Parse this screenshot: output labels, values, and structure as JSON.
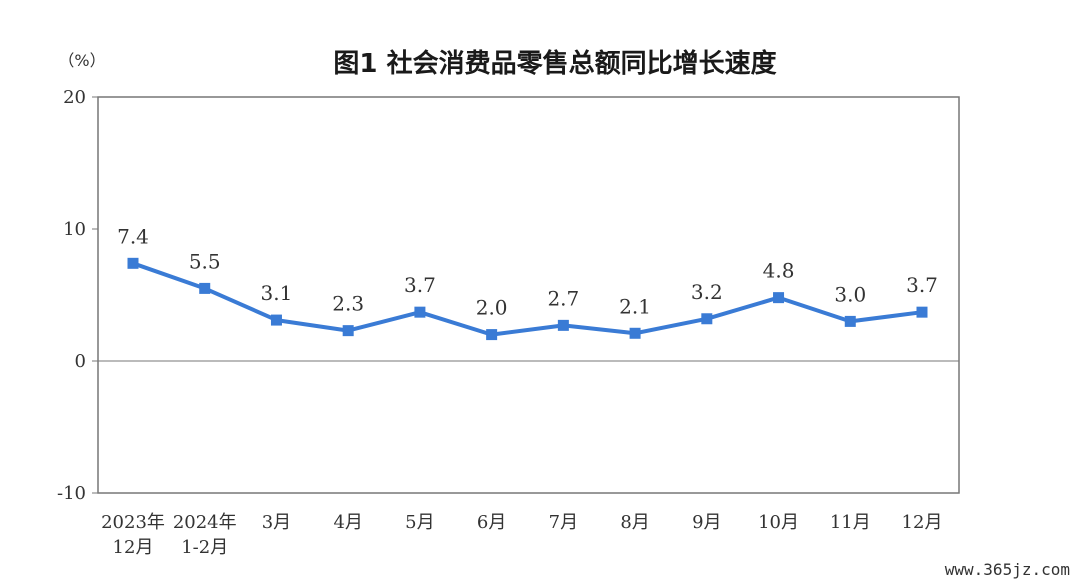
{
  "chart_data": {
    "type": "line",
    "title": "图1  社会消费品零售总额同比增长速度",
    "unit": "（%）",
    "xlabel": "",
    "ylabel": "",
    "ylim": [
      -10,
      20
    ],
    "yticks": [
      -10,
      0,
      10,
      20
    ],
    "grid": false,
    "categories": [
      [
        "2023年",
        "12月"
      ],
      [
        "2024年",
        "1-2月"
      ],
      [
        "3月"
      ],
      [
        "4月"
      ],
      [
        "5月"
      ],
      [
        "6月"
      ],
      [
        "7月"
      ],
      [
        "8月"
      ],
      [
        "9月"
      ],
      [
        "10月"
      ],
      [
        "11月"
      ],
      [
        "12月"
      ]
    ],
    "series": [
      {
        "values": [
          7.4,
          5.5,
          3.1,
          2.3,
          3.7,
          2.0,
          2.7,
          2.1,
          3.2,
          4.8,
          3.0,
          3.7
        ],
        "labels": [
          "7.4",
          "5.5",
          "3.1",
          "2.3",
          "3.7",
          "2.0",
          "2.7",
          "2.1",
          "3.2",
          "4.8",
          "3.0",
          "3.7"
        ],
        "color": "#3a7bd5"
      }
    ]
  },
  "watermark": "www.365jz.com",
  "colors": {
    "line": "#3a7bd5",
    "axis": "#555555",
    "frame": "#777777"
  }
}
